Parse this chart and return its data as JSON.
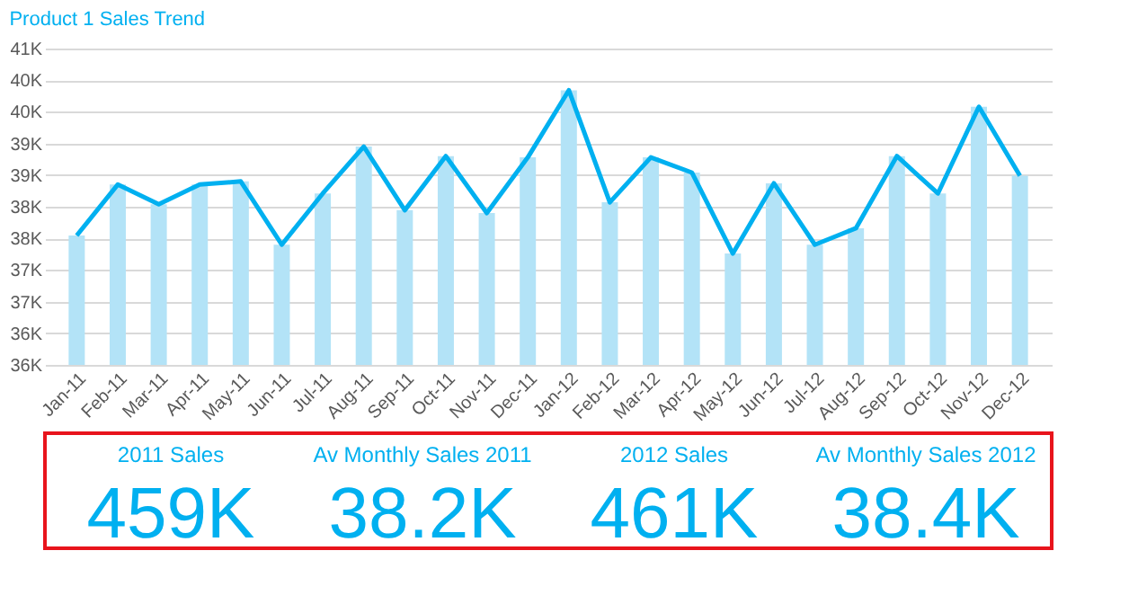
{
  "chart_data": [
    {
      "type": "bar",
      "title": "Product 1 Sales Trend",
      "categories": [
        "Jan-11",
        "Feb-11",
        "Mar-11",
        "Apr-11",
        "May-11",
        "Jun-11",
        "Jul-11",
        "Aug-11",
        "Sep-11",
        "Oct-11",
        "Nov-11",
        "Dec-11",
        "Jan-12",
        "Feb-12",
        "Mar-12",
        "Apr-12",
        "May-12",
        "Jun-12",
        "Jul-12",
        "Aug-12",
        "Sep-12",
        "Oct-12",
        "Nov-12",
        "Dec-12"
      ],
      "series": [
        {
          "type": "bar",
          "color": "#b3e3f7",
          "values": [
            37545,
            38350,
            38040,
            38350,
            38400,
            37400,
            38210,
            38950,
            37945,
            38800,
            37900,
            38780,
            39840,
            38070,
            38780,
            38540,
            37260,
            38370,
            37400,
            37660,
            38800,
            38210,
            39580,
            38490
          ]
        },
        {
          "type": "line",
          "color": "#00b0f0",
          "values": [
            37545,
            38350,
            38040,
            38350,
            38400,
            37400,
            38210,
            38950,
            37945,
            38800,
            37900,
            38780,
            39840,
            38070,
            38780,
            38540,
            37260,
            38370,
            37400,
            37660,
            38800,
            38210,
            39580,
            38490
          ]
        }
      ],
      "ylim": [
        35500,
        40500
      ],
      "yticks": [
        {
          "value": 35500,
          "label": "36K"
        },
        {
          "value": 36000,
          "label": "36K"
        },
        {
          "value": 36500,
          "label": "37K"
        },
        {
          "value": 37000,
          "label": "37K"
        },
        {
          "value": 37500,
          "label": "38K"
        },
        {
          "value": 38000,
          "label": "38K"
        },
        {
          "value": 38500,
          "label": "39K"
        },
        {
          "value": 39000,
          "label": "39K"
        },
        {
          "value": 39500,
          "label": "40K"
        },
        {
          "value": 40000,
          "label": "40K"
        },
        {
          "value": 40500,
          "label": "41K"
        }
      ],
      "grid": "y",
      "marker": "none",
      "line_style": "solid"
    },
    {
      "type": "other",
      "annotations": [
        "2011 Sales",
        "459K",
        "Av Monthly Sales 2011",
        "38.2K",
        "2012 Sales",
        "461K",
        "Av Monthly Sales 2012",
        "38.4K"
      ]
    }
  ]
}
